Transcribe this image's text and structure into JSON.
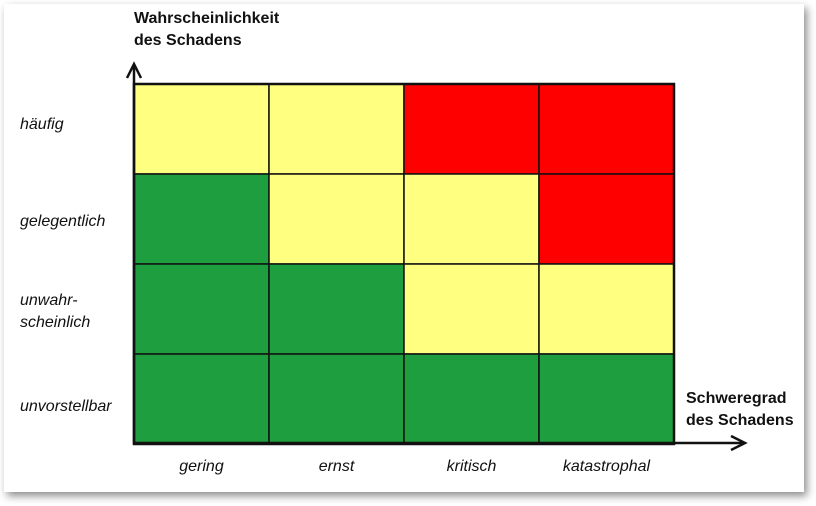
{
  "y_axis": {
    "title_line1": "Wahrscheinlichkeit",
    "title_line2": "des Schadens"
  },
  "x_axis": {
    "title_line1": "Schweregrad",
    "title_line2": "des Schadens"
  },
  "rows": [
    {
      "label_line1": "häufig",
      "label_line2": ""
    },
    {
      "label_line1": "gelegentlich",
      "label_line2": ""
    },
    {
      "label_line1": "unwahr-",
      "label_line2": "scheinlich"
    },
    {
      "label_line1": "unvorstellbar",
      "label_line2": ""
    }
  ],
  "columns": [
    "gering",
    "ernst",
    "kritisch",
    "katastrophal"
  ],
  "colors": {
    "green": "#1e9e3e",
    "yellow": "#ffff80",
    "red": "#ff0000",
    "grid": "#111111"
  },
  "chart_data": {
    "type": "heatmap",
    "rows": [
      "häufig",
      "gelegentlich",
      "unwahr-scheinlich",
      "unvorstellbar"
    ],
    "columns": [
      "gering",
      "ernst",
      "kritisch",
      "katastrophal"
    ],
    "cells": [
      [
        "yellow",
        "yellow",
        "red",
        "red"
      ],
      [
        "green",
        "yellow",
        "yellow",
        "red"
      ],
      [
        "green",
        "green",
        "yellow",
        "yellow"
      ],
      [
        "green",
        "green",
        "green",
        "green"
      ]
    ]
  }
}
